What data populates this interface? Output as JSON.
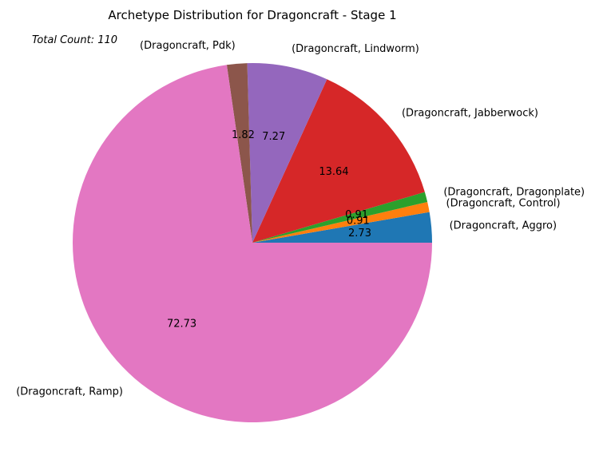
{
  "chart_data": {
    "type": "pie",
    "title": "Archetype Distribution for Dragoncraft - Stage 1",
    "annotation": "Total Count: 110",
    "slices": [
      {
        "label": "(Dragoncraft, Aggro)",
        "value": 2.73,
        "pct_label": "2.73",
        "color": "#1f77b4"
      },
      {
        "label": "(Dragoncraft, Control)",
        "value": 0.91,
        "pct_label": "0.91",
        "color": "#ff7f0e"
      },
      {
        "label": "(Dragoncraft, Dragonplate)",
        "value": 0.91,
        "pct_label": "0.91",
        "color": "#2ca02c"
      },
      {
        "label": "(Dragoncraft, Jabberwock)",
        "value": 13.64,
        "pct_label": "13.64",
        "color": "#d62728"
      },
      {
        "label": "(Dragoncraft, Lindworm)",
        "value": 7.27,
        "pct_label": "7.27",
        "color": "#9467bd"
      },
      {
        "label": "(Dragoncraft, Pdk)",
        "value": 1.82,
        "pct_label": "1.82",
        "color": "#8c564b"
      },
      {
        "label": "(Dragoncraft, Ramp)",
        "value": 72.73,
        "pct_label": "72.73",
        "color": "#e377c2"
      }
    ],
    "start_angle_deg": 0,
    "direction": "counterclockwise",
    "legend": "none"
  }
}
